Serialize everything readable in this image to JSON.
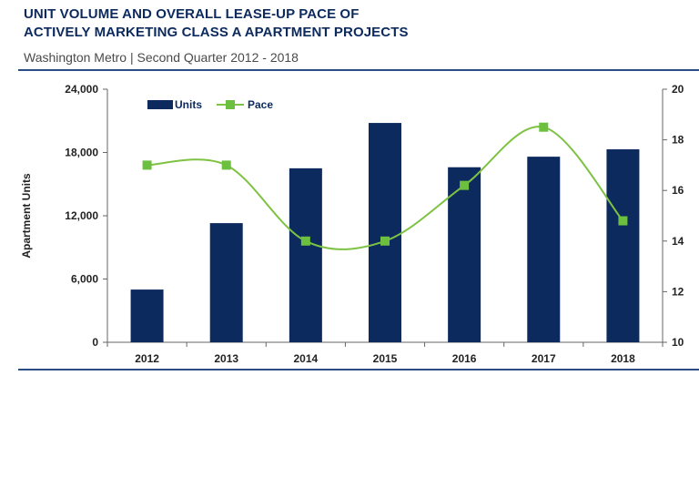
{
  "header": {
    "title_line1": "UNIT VOLUME AND OVERALL LEASE-UP PACE OF",
    "title_line2": "ACTIVELY MARKETING CLASS A APARTMENT PROJECTS",
    "subtitle": "Washington Metro | Second Quarter 2012 - 2018"
  },
  "colors": {
    "bar": "#0c2a5e",
    "line": "#7dc242",
    "marker": "#6cbf3f",
    "rule": "#2a4d86",
    "title": "#0c2a5e"
  },
  "chart_data": {
    "type": "bar",
    "categories": [
      "2012",
      "2013",
      "2014",
      "2015",
      "2016",
      "2017",
      "2018"
    ],
    "series": [
      {
        "name": "Units",
        "type": "bar",
        "axis": "left",
        "values": [
          5000,
          11300,
          16500,
          20800,
          16600,
          17600,
          18300
        ]
      },
      {
        "name": "Pace",
        "type": "line",
        "axis": "right",
        "values": [
          17.0,
          17.0,
          14.0,
          14.0,
          16.2,
          18.5,
          14.8
        ]
      }
    ],
    "ylabel": "Apartment Units",
    "ylim": [
      0,
      24000
    ],
    "yticks": [
      "0",
      "6,000",
      "12,000",
      "18,000",
      "24,000"
    ],
    "y2lim": [
      10,
      20
    ],
    "y2ticks": [
      "10",
      "12",
      "14",
      "16",
      "18",
      "20"
    ],
    "legend": {
      "position": "top-left",
      "items": [
        "Units",
        "Pace"
      ]
    },
    "grid": false
  }
}
